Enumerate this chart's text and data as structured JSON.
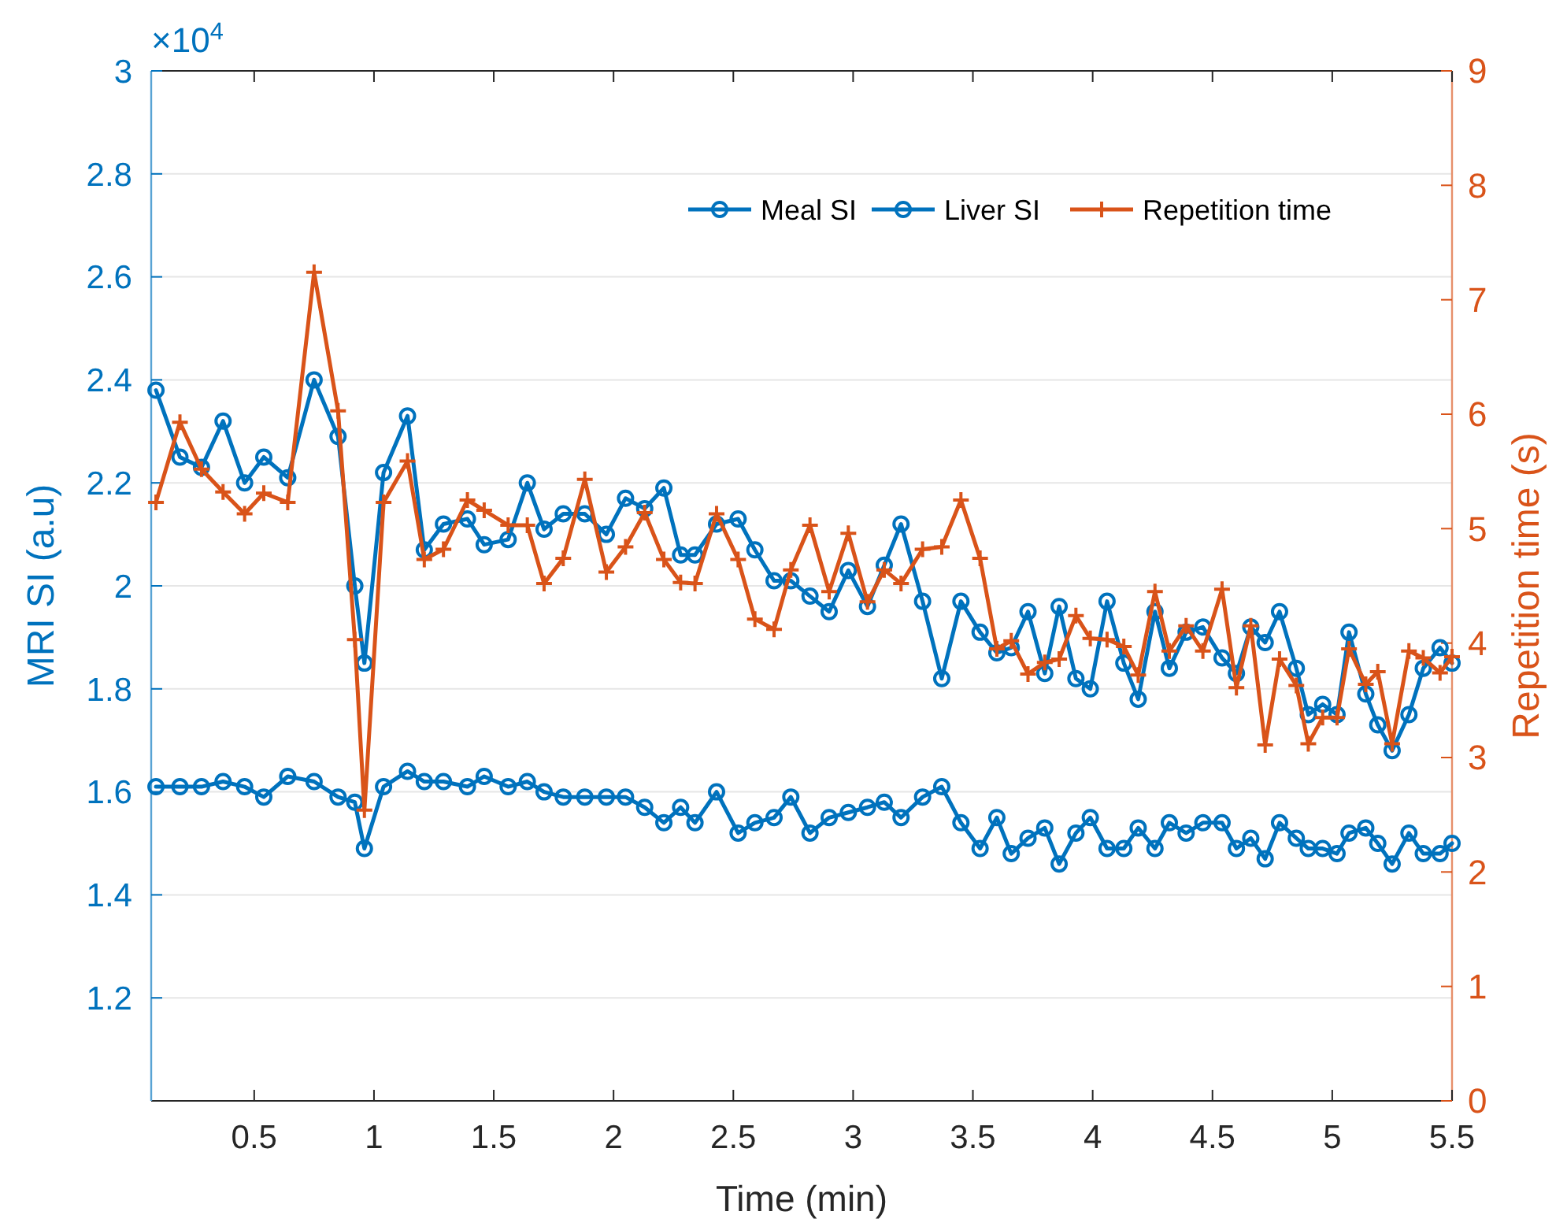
{
  "chart_data": {
    "type": "line",
    "xlabel": "Time (min)",
    "ylabel": "MRI SI (a.u)",
    "y2label": "Repetition time (s)",
    "annotations": [
      "×10$^{4}$"
    ],
    "x": [
      0.09,
      0.19,
      0.28,
      0.37,
      0.46,
      0.54,
      0.64,
      0.75,
      0.85,
      0.92,
      0.96,
      1.04,
      1.14,
      1.21,
      1.29,
      1.39,
      1.46,
      1.56,
      1.64,
      1.71,
      1.79,
      1.88,
      1.97,
      2.05,
      2.13,
      2.21,
      2.28,
      2.34,
      2.43,
      2.52,
      2.59,
      2.67,
      2.74,
      2.82,
      2.9,
      2.98,
      3.06,
      3.13,
      3.2,
      3.29,
      3.37,
      3.45,
      3.53,
      3.6,
      3.66,
      3.73,
      3.8,
      3.86,
      3.93,
      3.99,
      4.06,
      4.13,
      4.19,
      4.26,
      4.32,
      4.39,
      4.46,
      4.54,
      4.6,
      4.66,
      4.72,
      4.78,
      4.85,
      4.9,
      4.96,
      5.02,
      5.07,
      5.14,
      5.19,
      5.25,
      5.32,
      5.38,
      5.45,
      5.5
    ],
    "series": [
      {
        "name": "Meal SI",
        "color": "#0072bd",
        "marker": "circle",
        "values": [
          2.38,
          2.25,
          2.23,
          2.32,
          2.2,
          2.25,
          2.21,
          2.4,
          2.29,
          2.0,
          1.85,
          2.22,
          2.33,
          2.07,
          2.12,
          2.13,
          2.08,
          2.09,
          2.2,
          2.11,
          2.14,
          2.14,
          2.1,
          2.17,
          2.15,
          2.19,
          2.06,
          2.06,
          2.12,
          2.13,
          2.07,
          2.01,
          2.01,
          1.98,
          1.95,
          2.03,
          1.96,
          2.04,
          2.12,
          1.97,
          1.82,
          1.97,
          1.91,
          1.87,
          1.88,
          1.95,
          1.83,
          1.96,
          1.82,
          1.8,
          1.97,
          1.85,
          1.78,
          1.95,
          1.84,
          1.91,
          1.92,
          1.86,
          1.83,
          1.92,
          1.89,
          1.95,
          1.84,
          1.75,
          1.77,
          1.75,
          1.91,
          1.79,
          1.73,
          1.68,
          1.75,
          1.84,
          1.88,
          1.85
        ]
      },
      {
        "name": "Liver SI",
        "color": "#0072bd",
        "marker": "circle",
        "values": [
          1.61,
          1.61,
          1.61,
          1.62,
          1.61,
          1.59,
          1.63,
          1.62,
          1.59,
          1.58,
          1.49,
          1.61,
          1.64,
          1.62,
          1.62,
          1.61,
          1.63,
          1.61,
          1.62,
          1.6,
          1.59,
          1.59,
          1.59,
          1.59,
          1.57,
          1.54,
          1.57,
          1.54,
          1.6,
          1.52,
          1.54,
          1.55,
          1.59,
          1.52,
          1.55,
          1.56,
          1.57,
          1.58,
          1.55,
          1.59,
          1.61,
          1.54,
          1.49,
          1.55,
          1.48,
          1.51,
          1.53,
          1.46,
          1.52,
          1.55,
          1.49,
          1.49,
          1.53,
          1.49,
          1.54,
          1.52,
          1.54,
          1.54,
          1.49,
          1.51,
          1.47,
          1.54,
          1.51,
          1.49,
          1.49,
          1.48,
          1.52,
          1.53,
          1.5,
          1.46,
          1.52,
          1.48,
          1.48,
          1.5
        ]
      },
      {
        "name": "Repetition time",
        "color": "#d95319",
        "marker": "cross",
        "axis": "y2",
        "values": [
          5.23,
          5.93,
          5.52,
          5.32,
          5.13,
          5.31,
          5.23,
          7.24,
          6.03,
          4.03,
          2.54,
          5.23,
          5.59,
          4.73,
          4.82,
          5.25,
          5.16,
          5.03,
          5.03,
          4.52,
          4.74,
          5.43,
          4.62,
          4.84,
          5.14,
          4.73,
          4.53,
          4.52,
          5.13,
          4.73,
          4.21,
          4.12,
          4.64,
          5.03,
          4.45,
          4.96,
          4.36,
          4.64,
          4.52,
          4.82,
          4.84,
          5.25,
          4.74,
          3.95,
          4.02,
          3.73,
          3.83,
          3.86,
          4.24,
          4.04,
          4.03,
          3.97,
          3.72,
          4.45,
          3.93,
          4.15,
          3.93,
          4.47,
          3.61,
          4.15,
          3.11,
          3.86,
          3.63,
          3.12,
          3.35,
          3.35,
          3.95,
          3.64,
          3.75,
          3.12,
          3.93,
          3.87,
          3.74,
          3.88
        ]
      }
    ],
    "xlim": [
      0.07,
      5.5
    ],
    "xticks": [
      0.5,
      1,
      1.5,
      2,
      2.5,
      3,
      3.5,
      4,
      4.5,
      5,
      5.5
    ],
    "ylim": [
      1,
      3
    ],
    "yticks": [
      1.2,
      1.4,
      1.6,
      1.8,
      2,
      2.2,
      2.4,
      2.6,
      2.8,
      3
    ],
    "y2lim": [
      0,
      9
    ],
    "y2ticks": [
      0,
      1,
      2,
      3,
      4,
      5,
      6,
      7,
      8,
      9
    ],
    "grid": "y",
    "legend": "top right",
    "line_style": "solid"
  }
}
